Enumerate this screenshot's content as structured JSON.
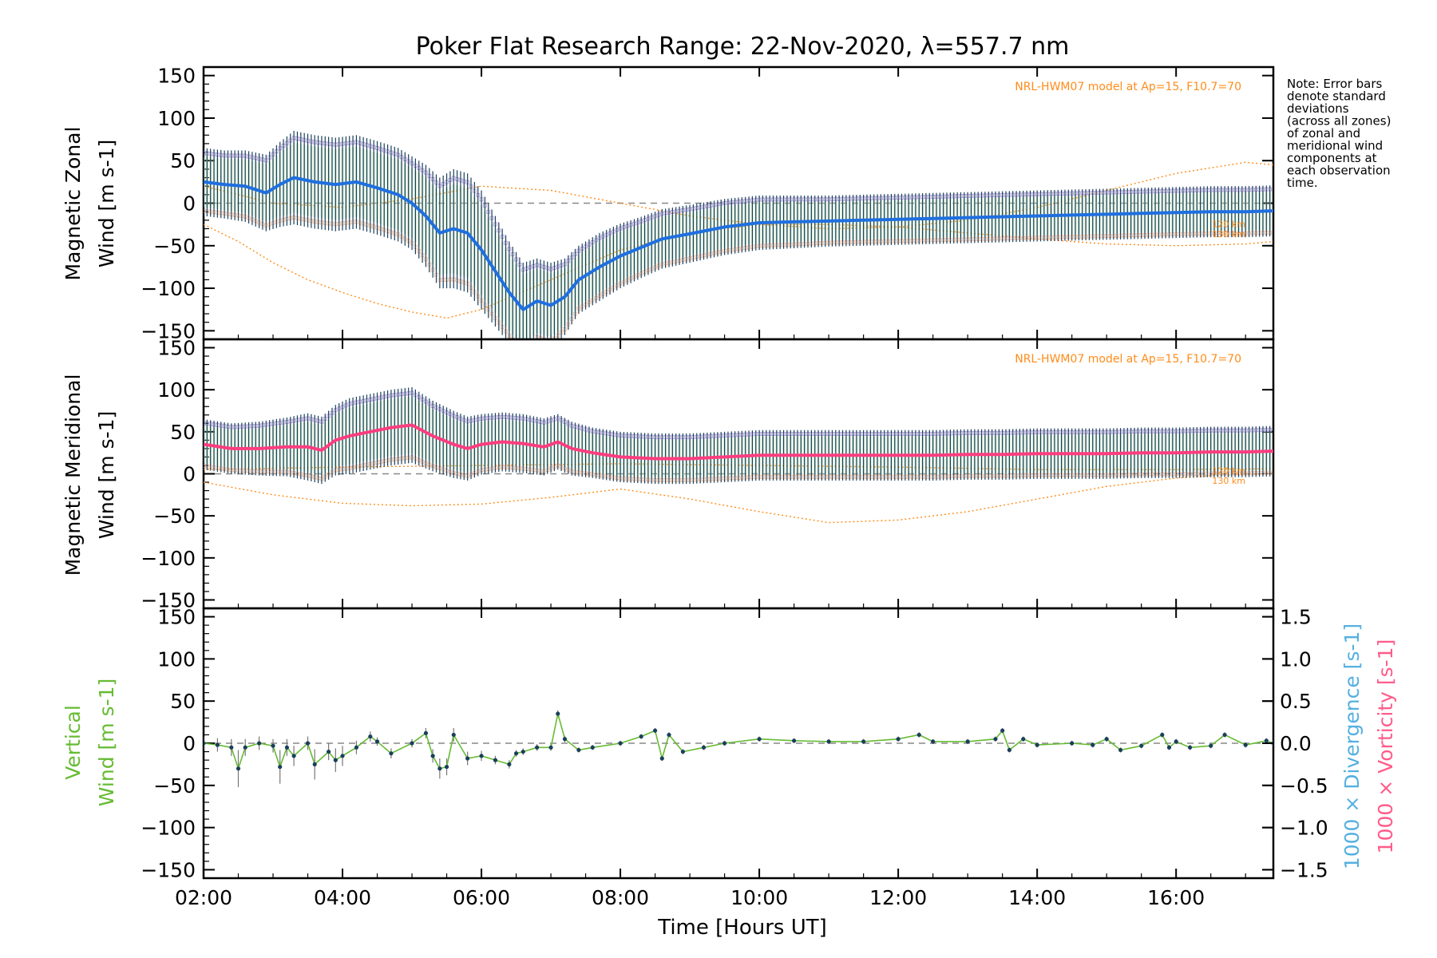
{
  "title": "Poker Flat Research Range: 22-Nov-2020, λ=557.7 nm",
  "note_lines": [
    "Note: Error bars",
    "denote standard",
    "deviations",
    "(across all zones)",
    "of zonal and",
    "meridional wind",
    "components at",
    "each observation",
    "time."
  ],
  "model_label": "NRL-HWM07 model at Ap=15, F10.7=70",
  "altitude_labels": [
    "120 km",
    "130 km"
  ],
  "xlabel": "Time [Hours UT]",
  "colors": {
    "zonal_mean": "#1f6fe0",
    "meridional_mean": "#ff3d7f",
    "vertical": "#66bb33",
    "divergence_label": "#55b0e0",
    "vorticity_label": "#ff5c8a",
    "model": "#ff8c1a",
    "error_bar": "#1a3f5c",
    "zone_scatter_purple": "#b9a8e0"
  },
  "chart_data": [
    {
      "type": "line",
      "title": "",
      "ylabel_line1": "Magnetic Zonal",
      "ylabel_line2": "Wind [m s-1]",
      "xlim_hours": [
        2.0,
        17.4
      ],
      "ylim": [
        -160,
        160
      ],
      "yticks": [
        -150,
        -100,
        -50,
        0,
        50,
        100,
        150
      ],
      "series": [
        {
          "x": [
            2.0,
            2.3,
            2.6,
            2.9,
            3.1,
            3.3,
            3.6,
            3.9,
            4.2,
            4.5,
            4.8,
            5.0,
            5.2,
            5.4,
            5.6,
            5.8,
            6.0,
            6.2,
            6.4,
            6.6,
            6.8,
            7.0,
            7.2,
            7.4,
            7.7,
            8.0,
            8.3,
            8.6,
            9.0,
            9.5,
            10.0,
            10.5,
            11.0,
            11.5,
            12.0,
            12.5,
            13.0,
            13.5,
            14.0,
            14.5,
            15.0,
            15.5,
            16.0,
            16.5,
            17.0,
            17.4
          ],
          "y": [
            25,
            22,
            20,
            12,
            22,
            30,
            25,
            22,
            25,
            18,
            10,
            0,
            -15,
            -35,
            -30,
            -35,
            -55,
            -80,
            -105,
            -125,
            -115,
            -120,
            -110,
            -90,
            -75,
            -62,
            -52,
            -42,
            -36,
            -28,
            -23,
            -22,
            -21,
            -20,
            -19,
            -18,
            -17,
            -16,
            -15,
            -14,
            -13,
            -12,
            -11,
            -10,
            -10,
            -9
          ],
          "err": [
            40,
            40,
            42,
            45,
            50,
            55,
            55,
            55,
            55,
            55,
            55,
            55,
            60,
            65,
            70,
            70,
            70,
            65,
            60,
            55,
            50,
            50,
            45,
            40,
            40,
            38,
            36,
            35,
            34,
            33,
            32,
            31,
            30,
            30,
            30,
            30,
            30,
            30,
            30,
            30,
            30,
            30,
            30,
            30,
            30,
            30
          ]
        }
      ],
      "model_120_x": [
        2.0,
        3.0,
        4.0,
        5.0,
        6.0,
        7.0,
        8.0,
        9.0,
        10.0,
        11.0,
        12.0,
        13.0,
        14.0,
        15.0,
        16.0,
        17.0,
        17.4
      ],
      "model_120_y": [
        20,
        0,
        -5,
        5,
        20,
        15,
        0,
        -15,
        -25,
        -30,
        -28,
        -20,
        -5,
        15,
        35,
        48,
        45
      ],
      "model_130_x": [
        2.0,
        2.5,
        3.0,
        3.5,
        4.0,
        4.5,
        5.0,
        5.5,
        6.0,
        7.0,
        8.0,
        9.0,
        10.0,
        11.0,
        12.0,
        13.0,
        14.0,
        15.0,
        16.0,
        17.0,
        17.4
      ],
      "model_130_y": [
        -25,
        -45,
        -70,
        -90,
        -105,
        -118,
        -128,
        -135,
        -125,
        -90,
        -55,
        -35,
        -25,
        -25,
        -28,
        -35,
        -42,
        -48,
        -50,
        -48,
        -45
      ]
    },
    {
      "type": "line",
      "title": "",
      "ylabel_line1": "Magnetic Meridional",
      "ylabel_line2": "Wind [m s-1]",
      "xlim_hours": [
        2.0,
        17.4
      ],
      "ylim": [
        -160,
        160
      ],
      "yticks": [
        -150,
        -100,
        -50,
        0,
        50,
        100,
        150
      ],
      "series": [
        {
          "x": [
            2.0,
            2.4,
            2.8,
            3.2,
            3.5,
            3.7,
            3.9,
            4.1,
            4.4,
            4.7,
            5.0,
            5.3,
            5.6,
            5.8,
            6.0,
            6.3,
            6.6,
            6.9,
            7.1,
            7.3,
            7.6,
            8.0,
            8.5,
            9.0,
            9.5,
            10.0,
            10.5,
            11.0,
            11.5,
            12.0,
            12.5,
            13.0,
            13.5,
            14.0,
            14.5,
            15.0,
            15.5,
            16.0,
            16.5,
            17.0,
            17.4
          ],
          "y": [
            35,
            30,
            30,
            32,
            32,
            28,
            40,
            45,
            50,
            55,
            58,
            45,
            35,
            30,
            35,
            38,
            36,
            32,
            38,
            30,
            25,
            20,
            18,
            18,
            20,
            22,
            22,
            22,
            22,
            22,
            22,
            23,
            23,
            24,
            24,
            24,
            25,
            25,
            26,
            26,
            27
          ],
          "err": [
            30,
            30,
            32,
            35,
            40,
            40,
            42,
            45,
            45,
            45,
            45,
            42,
            40,
            38,
            36,
            35,
            35,
            34,
            33,
            32,
            30,
            30,
            30,
            30,
            30,
            30,
            30,
            30,
            30,
            30,
            30,
            30,
            30,
            30,
            30,
            30,
            30,
            30,
            30,
            30,
            30
          ]
        }
      ],
      "model_120_x": [
        2.0,
        4.0,
        6.0,
        8.0,
        10.0,
        12.0,
        14.0,
        16.0,
        17.4
      ],
      "model_120_y": [
        5,
        8,
        10,
        12,
        10,
        8,
        5,
        5,
        6
      ],
      "model_130_x": [
        2.0,
        3.0,
        4.0,
        5.0,
        6.0,
        7.0,
        8.0,
        9.0,
        10.0,
        11.0,
        12.0,
        13.0,
        14.0,
        15.0,
        16.0,
        17.0,
        17.4
      ],
      "model_130_y": [
        -10,
        -25,
        -35,
        -38,
        -36,
        -28,
        -18,
        -30,
        -45,
        -58,
        -55,
        -45,
        -30,
        -15,
        -5,
        0,
        0
      ]
    },
    {
      "type": "line",
      "title": "",
      "ylabel_line1": "Vertical",
      "ylabel_line2": "Wind [m s-1]",
      "right_ylabel_divergence": "1000 × Divergence [s-1]",
      "right_ylabel_vorticity": "1000 × Vorticity [s-1]",
      "xlim_hours": [
        2.0,
        17.4
      ],
      "ylim": [
        -160,
        160
      ],
      "yticks": [
        -150,
        -100,
        -50,
        0,
        50,
        100,
        150
      ],
      "right_ylim": [
        -1.6,
        1.6
      ],
      "right_yticks": [
        -1.5,
        -1.0,
        -0.5,
        0.0,
        0.5,
        1.0,
        1.5
      ],
      "series": [
        {
          "name": "",
          "x": [
            2.0,
            2.2,
            2.4,
            2.5,
            2.6,
            2.8,
            3.0,
            3.1,
            3.2,
            3.3,
            3.5,
            3.6,
            3.8,
            3.9,
            4.0,
            4.2,
            4.4,
            4.5,
            4.7,
            5.0,
            5.2,
            5.3,
            5.4,
            5.5,
            5.6,
            5.8,
            6.0,
            6.2,
            6.4,
            6.5,
            6.6,
            6.8,
            7.0,
            7.1,
            7.2,
            7.4,
            7.6,
            8.0,
            8.3,
            8.5,
            8.6,
            8.7,
            8.9,
            9.2,
            9.5,
            10.0,
            10.5,
            11.0,
            11.5,
            12.0,
            12.3,
            12.5,
            13.0,
            13.4,
            13.5,
            13.6,
            13.8,
            14.0,
            14.5,
            14.8,
            15.0,
            15.2,
            15.5,
            15.8,
            15.9,
            16.0,
            16.2,
            16.5,
            16.7,
            17.0,
            17.3,
            17.4
          ],
          "y": [
            0,
            -2,
            -5,
            -30,
            -5,
            0,
            -3,
            -28,
            -5,
            -15,
            0,
            -25,
            -10,
            -20,
            -15,
            -5,
            8,
            2,
            -12,
            0,
            12,
            -15,
            -30,
            -28,
            10,
            -18,
            -15,
            -20,
            -25,
            -12,
            -10,
            -5,
            -5,
            35,
            5,
            -8,
            -5,
            0,
            8,
            15,
            -18,
            10,
            -10,
            -5,
            0,
            5,
            3,
            2,
            2,
            5,
            10,
            2,
            2,
            5,
            15,
            -8,
            5,
            -2,
            0,
            -2,
            5,
            -8,
            -3,
            10,
            -5,
            2,
            -5,
            -3,
            10,
            -2,
            3,
            0
          ],
          "err": [
            8,
            8,
            10,
            22,
            10,
            8,
            8,
            20,
            10,
            12,
            8,
            18,
            10,
            14,
            12,
            8,
            6,
            5,
            6,
            5,
            6,
            8,
            12,
            10,
            8,
            8,
            6,
            5,
            5,
            4,
            4,
            4,
            4,
            4,
            4,
            3,
            3,
            3,
            3,
            3,
            3,
            3,
            3,
            3,
            3,
            3,
            3,
            3,
            3,
            3,
            3,
            3,
            3,
            3,
            3,
            3,
            3,
            3,
            3,
            3,
            3,
            3,
            3,
            3,
            3,
            3,
            3,
            3,
            3,
            3,
            3,
            3
          ]
        }
      ]
    }
  ],
  "x_ticks": [
    {
      "value": 2,
      "label": "02:00"
    },
    {
      "value": 4,
      "label": "04:00"
    },
    {
      "value": 6,
      "label": "06:00"
    },
    {
      "value": 8,
      "label": "08:00"
    },
    {
      "value": 10,
      "label": "10:00"
    },
    {
      "value": 12,
      "label": "12:00"
    },
    {
      "value": 14,
      "label": "14:00"
    },
    {
      "value": 16,
      "label": "16:00"
    }
  ]
}
